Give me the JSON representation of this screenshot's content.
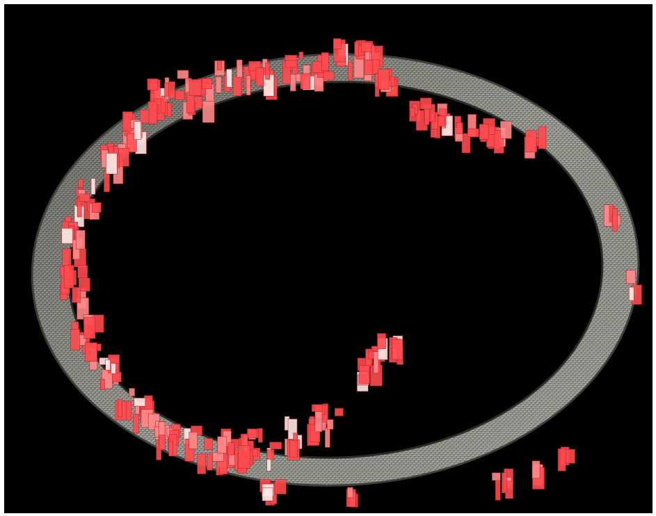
{
  "scene": {
    "subject": "ring-with-highlighted-regions",
    "colors": {
      "background": "#000000",
      "frame_border": "#ffffff",
      "ring_base": "#8c8c86",
      "ring_light": "#c9c8c0",
      "ring_dark": "#4a4a46",
      "highlight": "#ff4a4f",
      "highlight_light": "#ff8a8a",
      "specular": "#ffe9e6"
    }
  }
}
